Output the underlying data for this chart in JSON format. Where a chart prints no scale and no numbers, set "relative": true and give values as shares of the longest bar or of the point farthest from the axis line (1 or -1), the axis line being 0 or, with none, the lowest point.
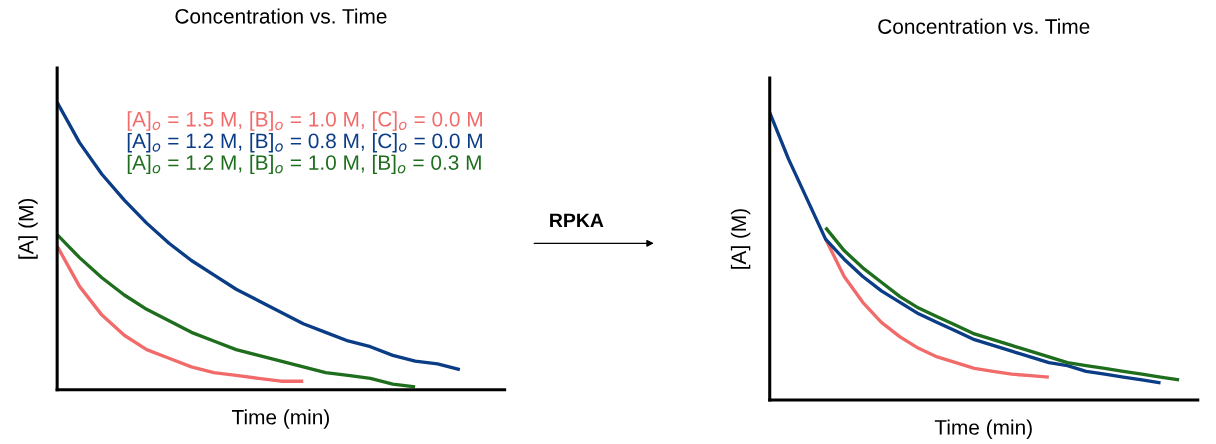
{
  "chart_data": [
    {
      "type": "line",
      "title": "Concentration vs. Time",
      "xlabel": "Time (min)",
      "ylabel": "[A] (M)",
      "relative": true,
      "tick_labels": false,
      "legend": "top right",
      "annotations": [
        "RPKA"
      ],
      "categories": [
        null,
        null,
        null,
        null,
        null,
        null,
        null,
        null,
        null,
        null,
        null,
        null,
        null,
        null,
        null,
        null,
        null,
        null,
        null,
        null,
        null
      ],
      "series": [
        {
          "name": "[A]$_{o}$ = 1.5 M, [B]$_{o}$ = 1.0 M, [C]$_{o}$ = 0.0 M",
          "color": "#f26b6b",
          "values": [
            0.5,
            0.36,
            0.26,
            0.19,
            0.14,
            0.11,
            0.08,
            0.06,
            0.05,
            0.04,
            0.03,
            0.03,
            null,
            null,
            null,
            null,
            null,
            null,
            null,
            null,
            null
          ]
        },
        {
          "name": "[A]$_{o}$ = 1.2 M, [B]$_{o}$ = 0.8 M, [C]$_{o}$ = 0.0 M",
          "color": "#0b3d86",
          "values": [
            1.0,
            0.86,
            0.75,
            0.66,
            0.58,
            0.51,
            0.45,
            0.4,
            0.35,
            0.31,
            0.27,
            0.23,
            0.2,
            0.17,
            0.15,
            0.12,
            0.1,
            0.09,
            0.07,
            null,
            null
          ]
        },
        {
          "name": "[A]$_{o}$ = 1.2 M, [B]$_{o}$ = 1.0 M, [B]$_{o}$ = 0.3 M",
          "color": "#1e6e1e",
          "values": [
            0.54,
            0.46,
            0.39,
            0.33,
            0.28,
            0.24,
            0.2,
            0.17,
            0.14,
            0.12,
            0.1,
            0.08,
            0.06,
            0.05,
            0.04,
            0.02,
            0.01,
            null,
            null,
            null,
            null
          ]
        }
      ]
    },
    {
      "type": "line",
      "title": "Concentration vs. Time",
      "xlabel": "Time (min)",
      "ylabel": "[A] (M)",
      "relative": true,
      "tick_labels": false,
      "categories": [
        null,
        null,
        null,
        null,
        null,
        null,
        null,
        null,
        null,
        null,
        null,
        null,
        null,
        null,
        null,
        null,
        null,
        null,
        null,
        null,
        null,
        null,
        null,
        null
      ],
      "series": [
        {
          "color": "#f26b6b",
          "values": [
            null,
            null,
            null,
            0.56,
            0.43,
            0.34,
            0.27,
            0.22,
            0.18,
            0.15,
            0.13,
            0.11,
            0.1,
            0.09,
            0.085,
            0.08,
            null,
            null,
            null,
            null,
            null,
            null,
            null,
            null
          ]
        },
        {
          "color": "#0b3d86",
          "values": [
            1.0,
            0.84,
            0.7,
            0.56,
            0.49,
            0.43,
            0.38,
            0.34,
            0.3,
            0.27,
            0.24,
            0.21,
            0.19,
            0.17,
            0.15,
            0.13,
            0.12,
            0.1,
            0.09,
            0.08,
            0.07,
            0.06,
            null,
            null
          ]
        },
        {
          "color": "#1e6e1e",
          "values": [
            null,
            null,
            null,
            0.6,
            0.52,
            0.46,
            0.41,
            0.36,
            0.32,
            0.29,
            0.26,
            0.23,
            0.21,
            0.19,
            0.17,
            0.15,
            0.13,
            0.12,
            0.11,
            0.1,
            0.09,
            0.08,
            0.07,
            null
          ]
        }
      ]
    }
  ]
}
